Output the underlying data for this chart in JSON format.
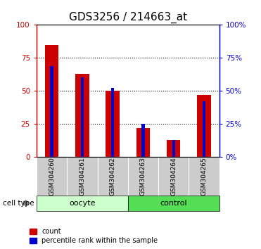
{
  "title": "GDS3256 / 214663_at",
  "categories": [
    "GSM304260",
    "GSM304261",
    "GSM304262",
    "GSM304263",
    "GSM304264",
    "GSM304265"
  ],
  "count_values": [
    85,
    63,
    50,
    22,
    13,
    47
  ],
  "percentile_values": [
    69,
    60,
    52,
    25,
    13,
    42
  ],
  "group_labels": [
    "oocyte",
    "control"
  ],
  "bar_color_red": "#cc0000",
  "bar_color_blue": "#0000cc",
  "ylim": [
    0,
    100
  ],
  "yticks": [
    0,
    25,
    50,
    75,
    100
  ],
  "grid_color": "#000000",
  "oocyte_color": "#ccffcc",
  "control_color": "#55dd55",
  "box_color": "#cccccc",
  "legend_count": "count",
  "legend_pct": "percentile rank within the sample",
  "title_fontsize": 11,
  "tick_fontsize": 7.5,
  "cat_fontsize": 6.5,
  "group_fontsize": 8,
  "legend_fontsize": 7
}
